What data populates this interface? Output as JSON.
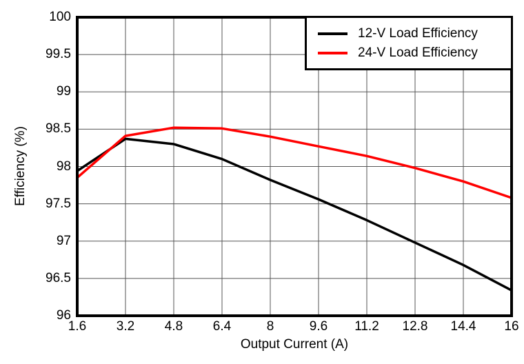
{
  "colors": {
    "background": "#ffffff",
    "frame": "#000000",
    "grid": "#555555",
    "series_12v": "#000000",
    "series_24v": "#ff0000"
  },
  "chart_data": {
    "type": "line",
    "title": "",
    "xlabel": "Output Current (A)",
    "ylabel": "Efficiency (%)",
    "xlim": [
      1.6,
      16
    ],
    "ylim": [
      96,
      100
    ],
    "grid": true,
    "legend_position": "top-right",
    "x_ticks": [
      1.6,
      3.2,
      4.8,
      6.4,
      8,
      9.6,
      11.2,
      12.8,
      14.4,
      16
    ],
    "x_tick_labels": [
      "1.6",
      "3.2",
      "4.8",
      "6.4",
      "8",
      "9.6",
      "11.2",
      "12.8",
      "14.4",
      "16"
    ],
    "y_ticks": [
      96,
      96.5,
      97,
      97.5,
      98,
      98.5,
      99,
      99.5,
      100
    ],
    "y_tick_labels": [
      "96",
      "96.5",
      "97",
      "97.5",
      "98",
      "98.5",
      "99",
      "99.5",
      "100"
    ],
    "x": [
      1.6,
      3.2,
      4.8,
      6.4,
      8,
      9.6,
      11.2,
      12.8,
      14.4,
      16
    ],
    "series": [
      {
        "name": "12-V Load Efficiency",
        "color": "#000000",
        "values": [
          97.94,
          98.37,
          98.3,
          98.1,
          97.82,
          97.56,
          97.28,
          96.98,
          96.68,
          96.34
        ]
      },
      {
        "name": "24-V Load Efficiency",
        "color": "#ff0000",
        "values": [
          97.85,
          98.41,
          98.52,
          98.51,
          98.4,
          98.27,
          98.14,
          97.98,
          97.8,
          97.58
        ]
      }
    ]
  }
}
